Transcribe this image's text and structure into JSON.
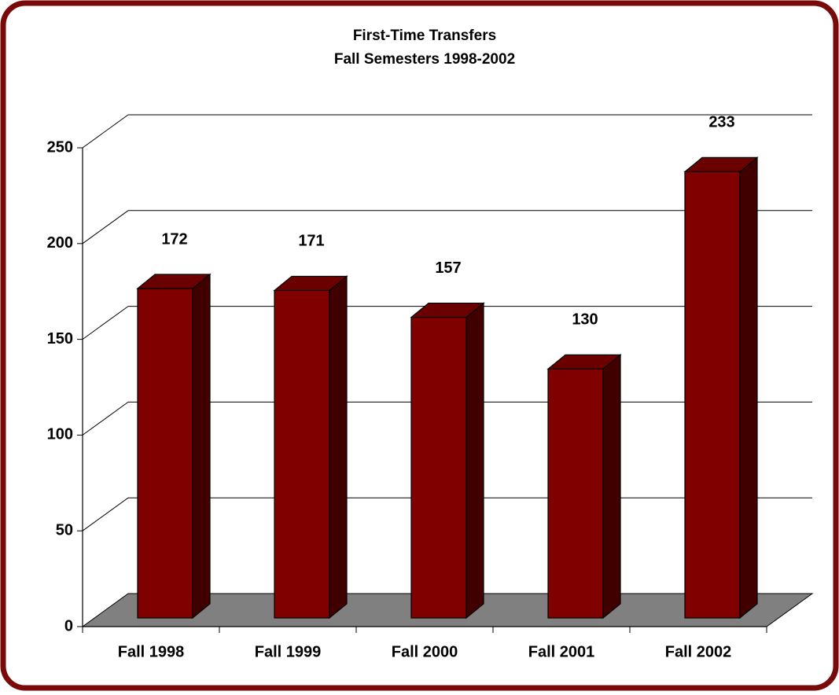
{
  "chart_data": {
    "type": "bar3d",
    "title": "First-Time Transfers",
    "subtitle": "Fall Semesters 1998-2002",
    "categories": [
      "Fall 1998",
      "Fall 1999",
      "Fall 2000",
      "Fall 2001",
      "Fall 2002"
    ],
    "values": [
      172,
      171,
      157,
      130,
      233
    ],
    "color": "#800000",
    "ylim": [
      0,
      250
    ],
    "yticks": [
      0,
      50,
      100,
      150,
      200,
      250
    ],
    "grid": true
  }
}
